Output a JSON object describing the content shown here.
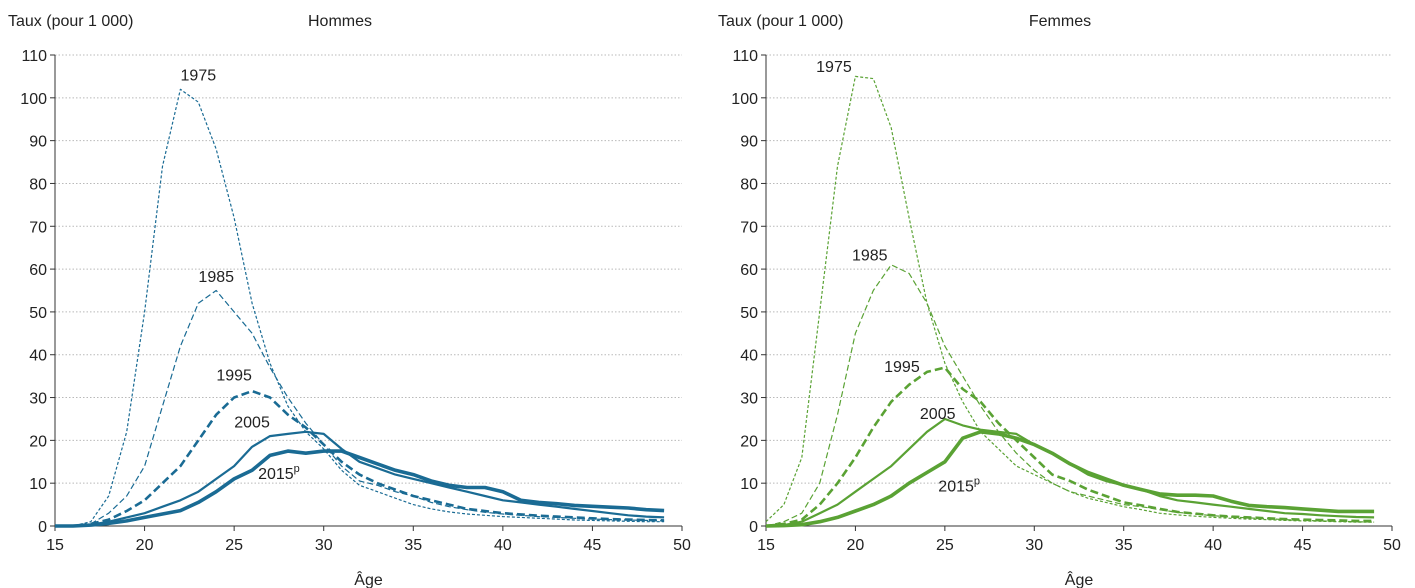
{
  "chart_data": [
    {
      "type": "line",
      "title": "Hommes",
      "ylabel": "Taux (pour 1 000)",
      "xlabel": "Âge",
      "xlim": [
        15,
        50
      ],
      "ylim": [
        0,
        110
      ],
      "xticks": [
        15,
        20,
        25,
        30,
        35,
        40,
        45,
        50
      ],
      "yticks": [
        0,
        10,
        20,
        30,
        40,
        50,
        60,
        70,
        80,
        90,
        100,
        110
      ],
      "grid": "horizontal dotted",
      "color": "#1a6b94",
      "x": [
        15,
        16,
        17,
        18,
        19,
        20,
        21,
        22,
        23,
        24,
        25,
        26,
        27,
        28,
        29,
        30,
        31,
        32,
        33,
        34,
        35,
        36,
        37,
        38,
        39,
        40,
        41,
        42,
        43,
        44,
        45,
        46,
        47,
        48,
        49
      ],
      "series": [
        {
          "name": "1975",
          "values": [
            0,
            0,
            1,
            7,
            22,
            50,
            84,
            102,
            99,
            88,
            72,
            52,
            38,
            28,
            22,
            18,
            13,
            9.5,
            8,
            6.5,
            5,
            4,
            3.3,
            2.8,
            2.5,
            2.2,
            2,
            1.8,
            1.6,
            1.4,
            1.3,
            1.2,
            1.1,
            1,
            1
          ]
        },
        {
          "name": "1985",
          "values": [
            0,
            0,
            0.5,
            3,
            7,
            14,
            28,
            42,
            52,
            55,
            50,
            45,
            37,
            30,
            24,
            19,
            14,
            10.5,
            9.5,
            8,
            7,
            5.5,
            4.5,
            3.8,
            3.2,
            2.8,
            2.5,
            2.2,
            2,
            1.8,
            1.6,
            1.5,
            1.4,
            1.3,
            1.2
          ]
        },
        {
          "name": "1995",
          "values": [
            0,
            0,
            0.5,
            1.5,
            3.5,
            6,
            10,
            14,
            20,
            26,
            30,
            31.5,
            30,
            26,
            23,
            19,
            15,
            12,
            10,
            8.5,
            7,
            6,
            5,
            4,
            3.5,
            3,
            2.7,
            2.4,
            2.2,
            2,
            1.8,
            1.6,
            1.5,
            1.4,
            1.3
          ]
        },
        {
          "name": "2005",
          "values": [
            0,
            0,
            0.3,
            1,
            2,
            3,
            4.5,
            6,
            8,
            11,
            14,
            18.5,
            21,
            21.5,
            22,
            21.5,
            18,
            15,
            13.5,
            12,
            11,
            10,
            9,
            8,
            7,
            6,
            5.5,
            5,
            4.5,
            4,
            3.5,
            3,
            2.5,
            2.2,
            2
          ]
        },
        {
          "name": "2015ᵖ",
          "values": [
            0,
            0,
            0.2,
            0.6,
            1.2,
            2,
            2.8,
            3.6,
            5.5,
            8,
            11,
            13,
            16.5,
            17.5,
            17,
            17.5,
            17.5,
            16,
            14.5,
            13,
            12,
            10.5,
            9.5,
            9,
            9,
            8,
            6,
            5.5,
            5.2,
            4.8,
            4.6,
            4.4,
            4.2,
            3.8,
            3.6
          ]
        }
      ],
      "labels": [
        {
          "text": "1975",
          "at_x": 23,
          "at_y": 104
        },
        {
          "text": "1985",
          "at_x": 24,
          "at_y": 57
        },
        {
          "text": "1995",
          "at_x": 25,
          "at_y": 34
        },
        {
          "text": "2005",
          "at_x": 26,
          "at_y": 23
        },
        {
          "text": "2015",
          "sup": "p",
          "at_x": 27.5,
          "at_y": 11
        }
      ]
    },
    {
      "type": "line",
      "title": "Femmes",
      "ylabel": "Taux (pour 1 000)",
      "xlabel": "Âge",
      "xlim": [
        15,
        50
      ],
      "ylim": [
        0,
        110
      ],
      "xticks": [
        15,
        20,
        25,
        30,
        35,
        40,
        45,
        50
      ],
      "yticks": [
        0,
        10,
        20,
        30,
        40,
        50,
        60,
        70,
        80,
        90,
        100,
        110
      ],
      "grid": "horizontal dotted",
      "color": "#5aa234",
      "x": [
        15,
        16,
        17,
        18,
        19,
        20,
        21,
        22,
        23,
        24,
        25,
        26,
        27,
        28,
        29,
        30,
        31,
        32,
        33,
        34,
        35,
        36,
        37,
        38,
        39,
        40,
        41,
        42,
        43,
        44,
        45,
        46,
        47,
        48,
        49
      ],
      "series": [
        {
          "name": "1975",
          "values": [
            1,
            5,
            16,
            50,
            84,
            105,
            104.5,
            93,
            72,
            52,
            38,
            29,
            22,
            18,
            14,
            12,
            10,
            8,
            6.5,
            5.5,
            4.5,
            3.8,
            3,
            2.6,
            2.3,
            2,
            1.8,
            1.6,
            1.5,
            1.3,
            1.2,
            1.1,
            1,
            0.9,
            0.9
          ]
        },
        {
          "name": "1985",
          "values": [
            0,
            1,
            3,
            10,
            26,
            45,
            55,
            61,
            59,
            52,
            42,
            35,
            28,
            22,
            17,
            13,
            10,
            8,
            7,
            6,
            5,
            4.5,
            3.8,
            3.2,
            2.8,
            2.4,
            2.1,
            1.9,
            1.7,
            1.5,
            1.3,
            1.2,
            1.1,
            1,
            0.9
          ]
        },
        {
          "name": "1995",
          "values": [
            0,
            0.5,
            1.5,
            5,
            10,
            16,
            23,
            29,
            33,
            36,
            37,
            32,
            29,
            24,
            20,
            16,
            12,
            10.5,
            8.5,
            7,
            5.5,
            4.8,
            4,
            3.3,
            2.9,
            2.5,
            2.2,
            2,
            1.8,
            1.6,
            1.5,
            1.4,
            1.3,
            1.2,
            1.2
          ]
        },
        {
          "name": "2005",
          "values": [
            0,
            0.2,
            1,
            3,
            5,
            8,
            11,
            14,
            18,
            22,
            25,
            23.5,
            22.5,
            22,
            21.5,
            19,
            17,
            14.5,
            12,
            10.5,
            9.5,
            8.5,
            7,
            6,
            5.5,
            5,
            4.5,
            4,
            3.5,
            3,
            2.8,
            2.5,
            2.3,
            2.1,
            2
          ]
        },
        {
          "name": "2015ᵖ",
          "values": [
            0,
            0.1,
            0.3,
            1,
            2,
            3.5,
            5,
            7,
            10,
            12.5,
            15,
            20.5,
            22,
            21.5,
            20.5,
            19,
            17,
            14.5,
            12.5,
            11,
            9.5,
            8.5,
            7.5,
            7.2,
            7.2,
            7,
            5.8,
            4.8,
            4.5,
            4.3,
            4,
            3.7,
            3.4,
            3.4,
            3.4
          ]
        }
      ],
      "labels": [
        {
          "text": "1975",
          "at_x": 18.8,
          "at_y": 106
        },
        {
          "text": "1985",
          "at_x": 20.8,
          "at_y": 62
        },
        {
          "text": "1995",
          "at_x": 22.6,
          "at_y": 36
        },
        {
          "text": "2005",
          "at_x": 24.6,
          "at_y": 25
        },
        {
          "text": "2015",
          "sup": "p",
          "at_x": 25.8,
          "at_y": 8
        }
      ]
    }
  ]
}
